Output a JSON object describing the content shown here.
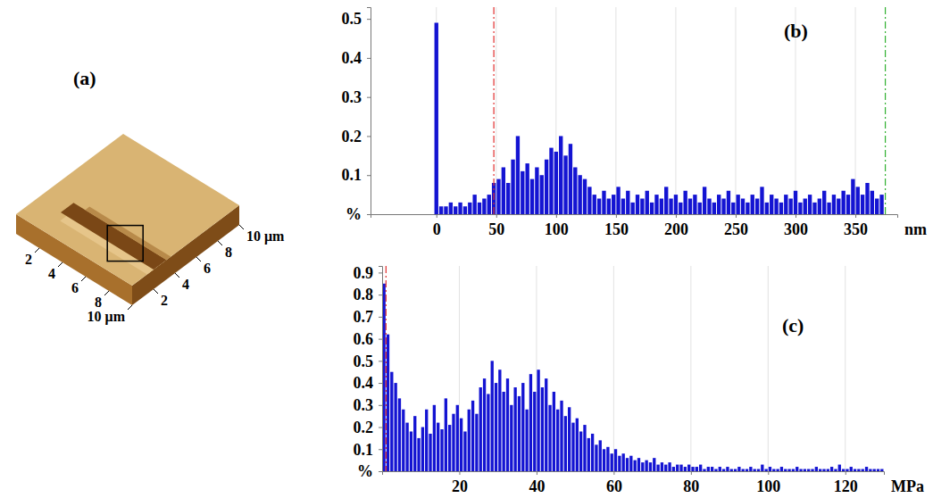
{
  "chart_data": [
    {
      "type": "surface",
      "title": "(a)",
      "xlim": [
        0,
        10
      ],
      "ylim": [
        0,
        10
      ],
      "xticks": [
        2,
        4,
        6,
        8,
        {
          "value": 10,
          "label": "10 μm"
        }
      ],
      "yticks": [
        2,
        4,
        6,
        8,
        {
          "value": 10,
          "label": "10 μm"
        }
      ]
    },
    {
      "type": "histogram",
      "title": "(b)",
      "xlabel": "nm",
      "color": "#1414d2",
      "grid": "x",
      "xlim": [
        -55,
        385
      ],
      "ylim": [
        0,
        0.53
      ],
      "xticks": [
        0,
        50,
        100,
        150,
        200,
        250,
        300,
        350
      ],
      "yticks": [
        {
          "value": 0,
          "label": "%"
        },
        0.1,
        0.2,
        0.3,
        0.4,
        0.5
      ],
      "bins": [
        -2,
        2,
        6,
        10,
        14,
        18,
        22,
        26,
        30,
        34,
        38,
        42,
        46,
        50,
        54,
        58,
        62,
        66,
        70,
        74,
        78,
        82,
        86,
        90,
        94,
        98,
        102,
        106,
        110,
        114,
        118,
        122,
        126,
        130,
        134,
        138,
        142,
        146,
        150,
        154,
        158,
        162,
        166,
        170,
        174,
        178,
        182,
        186,
        190,
        194,
        198,
        202,
        206,
        210,
        214,
        218,
        222,
        226,
        230,
        234,
        238,
        242,
        246,
        250,
        254,
        258,
        262,
        266,
        270,
        274,
        278,
        282,
        286,
        290,
        294,
        298,
        302,
        306,
        310,
        314,
        318,
        322,
        326,
        330,
        334,
        338,
        342,
        346,
        350,
        354,
        358,
        362,
        366,
        370,
        374
      ],
      "values": [
        0.49,
        0.02,
        0.02,
        0.03,
        0.02,
        0.03,
        0.02,
        0.03,
        0.05,
        0.03,
        0.04,
        0.05,
        0.08,
        0.09,
        0.12,
        0.08,
        0.14,
        0.2,
        0.11,
        0.13,
        0.09,
        0.12,
        0.1,
        0.14,
        0.17,
        0.16,
        0.2,
        0.15,
        0.18,
        0.12,
        0.1,
        0.09,
        0.07,
        0.05,
        0.04,
        0.06,
        0.04,
        0.05,
        0.07,
        0.04,
        0.06,
        0.03,
        0.05,
        0.04,
        0.06,
        0.03,
        0.05,
        0.04,
        0.07,
        0.04,
        0.05,
        0.03,
        0.06,
        0.04,
        0.05,
        0.03,
        0.07,
        0.04,
        0.03,
        0.05,
        0.04,
        0.06,
        0.03,
        0.05,
        0.04,
        0.03,
        0.05,
        0.04,
        0.07,
        0.03,
        0.05,
        0.04,
        0.03,
        0.05,
        0.04,
        0.06,
        0.03,
        0.04,
        0.05,
        0.03,
        0.04,
        0.06,
        0.03,
        0.05,
        0.04,
        0.06,
        0.05,
        0.09,
        0.07,
        0.05,
        0.08,
        0.06,
        0.04,
        0.05
      ],
      "vlines": [
        {
          "value": 48,
          "color": "#e03030",
          "line_style": "dashdot"
        },
        {
          "value": 375,
          "color": "#30b030",
          "line_style": "dashdot"
        }
      ]
    },
    {
      "type": "histogram",
      "title": "(c)",
      "xlabel": "MPa",
      "color": "#1414d2",
      "grid": "x",
      "xlim": [
        0,
        130
      ],
      "ylim": [
        0,
        0.93
      ],
      "xticks": [
        20,
        40,
        60,
        80,
        100,
        120
      ],
      "yticks": [
        {
          "value": 0,
          "label": "%"
        },
        0.1,
        0.2,
        0.3,
        0.4,
        0.5,
        0.6,
        0.7,
        0.8,
        0.9
      ],
      "bins": [
        0,
        1,
        2,
        3,
        4,
        5,
        6,
        7,
        8,
        9,
        10,
        11,
        12,
        13,
        14,
        15,
        16,
        17,
        18,
        19,
        20,
        21,
        22,
        23,
        24,
        25,
        26,
        27,
        28,
        29,
        30,
        31,
        32,
        33,
        34,
        35,
        36,
        37,
        38,
        39,
        40,
        41,
        42,
        43,
        44,
        45,
        46,
        47,
        48,
        49,
        50,
        51,
        52,
        53,
        54,
        55,
        56,
        57,
        58,
        59,
        60,
        61,
        62,
        63,
        64,
        65,
        66,
        67,
        68,
        69,
        70,
        71,
        72,
        73,
        74,
        75,
        76,
        77,
        78,
        79,
        80,
        81,
        82,
        83,
        84,
        85,
        86,
        87,
        88,
        89,
        90,
        91,
        92,
        93,
        94,
        95,
        96,
        97,
        98,
        99,
        100,
        101,
        102,
        103,
        104,
        105,
        106,
        107,
        108,
        109,
        110,
        111,
        112,
        113,
        114,
        115,
        116,
        117,
        118,
        119,
        120,
        121,
        122,
        123,
        124,
        125,
        126,
        127,
        128,
        129,
        130
      ],
      "values": [
        0.85,
        0.62,
        0.45,
        0.4,
        0.33,
        0.28,
        0.22,
        0.18,
        0.25,
        0.15,
        0.2,
        0.28,
        0.17,
        0.3,
        0.22,
        0.19,
        0.33,
        0.21,
        0.26,
        0.3,
        0.24,
        0.18,
        0.28,
        0.32,
        0.26,
        0.38,
        0.42,
        0.35,
        0.5,
        0.4,
        0.46,
        0.36,
        0.42,
        0.3,
        0.38,
        0.34,
        0.4,
        0.28,
        0.44,
        0.36,
        0.46,
        0.38,
        0.42,
        0.3,
        0.36,
        0.28,
        0.32,
        0.25,
        0.29,
        0.22,
        0.24,
        0.18,
        0.21,
        0.15,
        0.17,
        0.12,
        0.14,
        0.1,
        0.11,
        0.08,
        0.1,
        0.07,
        0.08,
        0.06,
        0.07,
        0.05,
        0.06,
        0.04,
        0.05,
        0.04,
        0.06,
        0.03,
        0.04,
        0.03,
        0.04,
        0.02,
        0.03,
        0.03,
        0.02,
        0.03,
        0.02,
        0.02,
        0.03,
        0.01,
        0.02,
        0.02,
        0.01,
        0.02,
        0.01,
        0.02,
        0.01,
        0.01,
        0.02,
        0.01,
        0.01,
        0.02,
        0.01,
        0.01,
        0.03,
        0.01,
        0.02,
        0.01,
        0.01,
        0.02,
        0.01,
        0.01,
        0.01,
        0.02,
        0.01,
        0.01,
        0.01,
        0.01,
        0.02,
        0.01,
        0.01,
        0.01,
        0.02,
        0.01,
        0.03,
        0.01,
        0.01,
        0.02,
        0.01,
        0.01,
        0.01,
        0.02,
        0.01,
        0.01,
        0.01,
        0.01
      ],
      "vlines": [
        {
          "value": 1,
          "color": "#e03030",
          "line_style": "dashdot"
        }
      ]
    }
  ]
}
